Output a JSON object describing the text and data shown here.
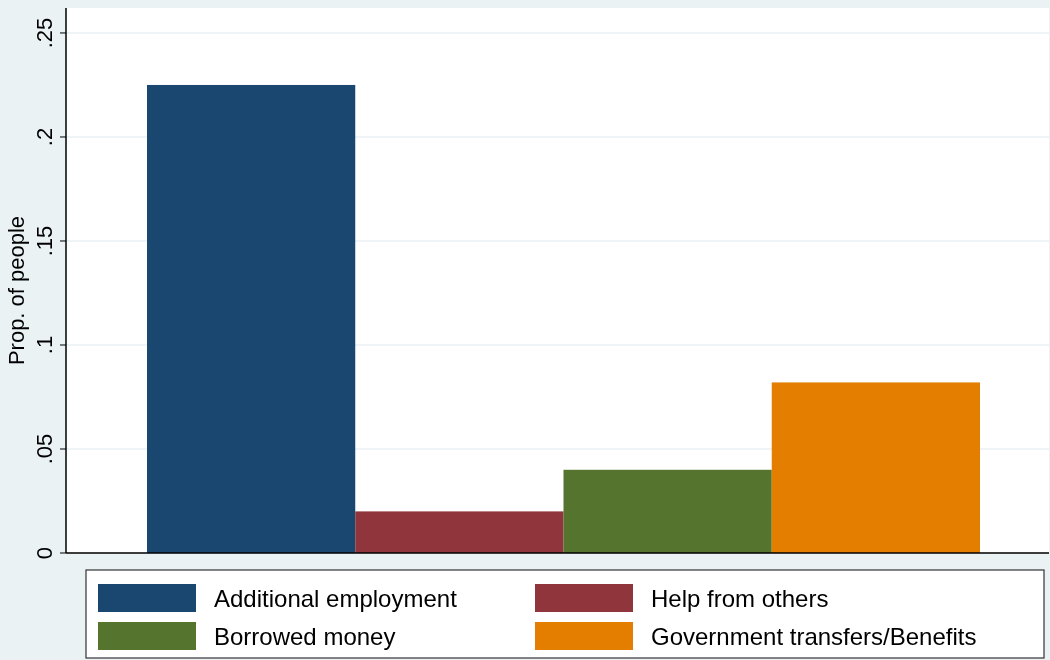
{
  "chart_data": {
    "type": "bar",
    "ylabel": "Prop. of people",
    "categories": [
      null
    ],
    "series": [
      {
        "name": "Additional employment",
        "color": "#1a476f",
        "values": [
          0.225
        ]
      },
      {
        "name": "Help from others",
        "color": "#90353b",
        "values": [
          0.02
        ]
      },
      {
        "name": "Borrowed money",
        "color": "#55752f",
        "values": [
          0.04
        ]
      },
      {
        "name": "Government transfers/Benefits",
        "color": "#e37e00",
        "values": [
          0.082
        ]
      }
    ],
    "ylim": [
      0,
      0.262
    ],
    "yticks": [
      {
        "value": 0,
        "label": "0"
      },
      {
        "value": 0.05,
        "label": ".05"
      },
      {
        "value": 0.1,
        "label": ".1"
      },
      {
        "value": 0.15,
        "label": ".15"
      },
      {
        "value": 0.2,
        "label": ".2"
      },
      {
        "value": 0.25,
        "label": ".25"
      }
    ],
    "grid": "y",
    "legend": "bottom",
    "tick_labels": "y"
  }
}
